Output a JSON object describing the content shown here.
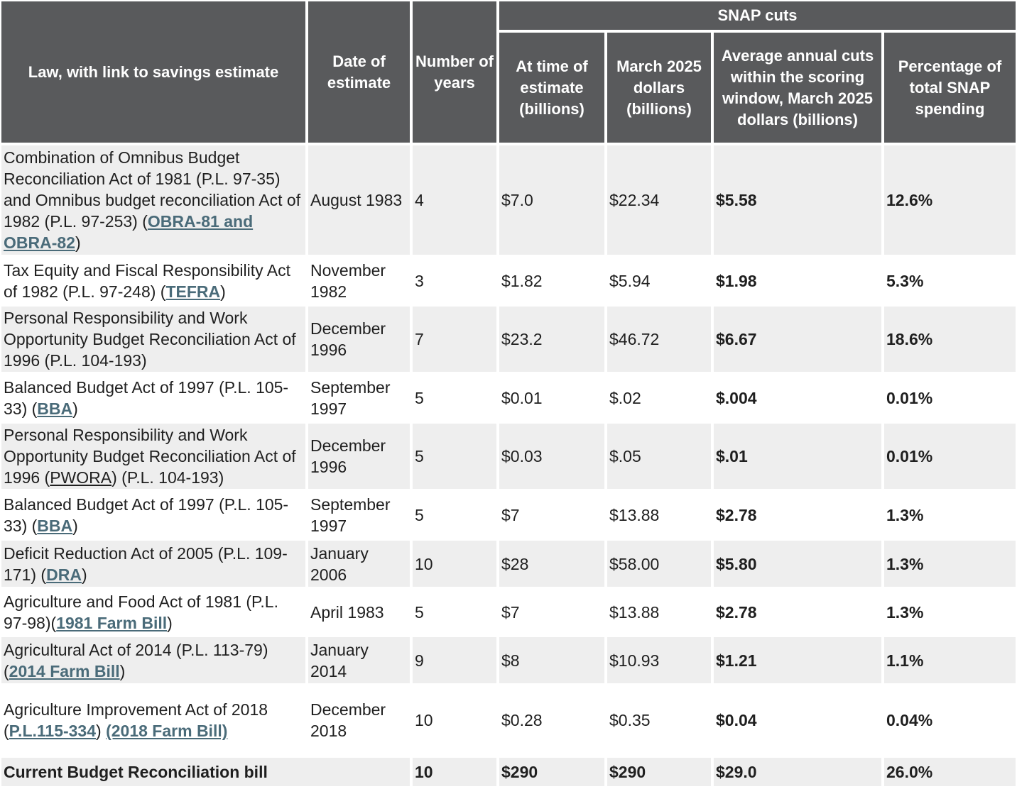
{
  "header": {
    "law": "Law, with link to savings estimate",
    "date": "Date of estimate",
    "years": "Number of years",
    "group": "SNAP cuts",
    "at_time": "At time of estimate (billions)",
    "march": "March 2025 dollars (billions)",
    "average": "Average annual cuts within the scoring window, March 2025 dollars (billions)",
    "percent": "Percentage of total SNAP spending"
  },
  "rows": [
    {
      "law_text": "Combination of Omnibus Budget Reconciliation Act of 1981 (P.L. 97-35) and Omnibus budget reconciliation Act of 1982 (P.L. 97-253) (",
      "link": "OBRA-81 and OBRA-82",
      "after": ")",
      "date": "August 1983",
      "years": "4",
      "at_time": "$7.0",
      "march": "$22.34",
      "average": "$5.58",
      "percent": "12.6%"
    },
    {
      "law_text": "Tax Equity and Fiscal Responsibility Act of 1982 (P.L. 97-248) (",
      "link": "TEFRA",
      "after": ")",
      "date": "November 1982",
      "years": "3",
      "at_time": "$1.82",
      "march": "$5.94",
      "average": "$1.98",
      "percent": "5.3%"
    },
    {
      "law_text": "Personal Responsibility and Work Opportunity Budget Reconciliation Act of 1996 (P.L. 104-193)",
      "date": "December 1996",
      "years": "7",
      "at_time": "$23.2",
      "march": "$46.72",
      "average": "$6.67",
      "percent": "18.6%"
    },
    {
      "law_text": "Balanced Budget Act of 1997 (P.L. 105-33) (",
      "link": "BBA",
      "after": ")",
      "date": "September 1997",
      "years": "5",
      "at_time": "$0.01",
      "march": "$.02",
      "average": "$.004",
      "percent": "0.01%"
    },
    {
      "law_text": "Personal Responsibility and Work Opportunity Budget Reconciliation Act of 1996 (",
      "plain_link": "PWORA",
      "after": ") (P.L. 104-193)",
      "date": "December 1996",
      "years": "5",
      "at_time": "$0.03",
      "march": "$.05",
      "average": "$.01",
      "percent": "0.01%"
    },
    {
      "law_text": "Balanced Budget Act of 1997 (P.L. 105-33) (",
      "link": "BBA",
      "after": ")",
      "date": "September 1997",
      "years": "5",
      "at_time": "$7",
      "march": "$13.88",
      "average": "$2.78",
      "percent": "1.3%"
    },
    {
      "law_text": "Deficit Reduction Act of 2005 (P.L. 109-171) (",
      "link": "DRA",
      "after": ")",
      "date": "January 2006",
      "years": "10",
      "at_time": "$28",
      "march": "$58.00",
      "average": "$5.80",
      "percent": "1.3%"
    },
    {
      "law_text": "Agriculture and Food Act of 1981 (P.L. 97-98)(",
      "link": "1981 Farm Bill",
      "after": ")",
      "date": "April 1983",
      "years": "5",
      "at_time": "$7",
      "march": "$13.88",
      "average": "$2.78",
      "percent": "1.3%"
    },
    {
      "law_text": "Agricultural Act of 2014 (P.L. 113-79) (",
      "link": "2014 Farm Bill",
      "after": ")",
      "date": "January 2014",
      "years": "9",
      "at_time": "$8",
      "march": "$10.93",
      "average": "$1.21",
      "percent": "1.1%"
    },
    {
      "law_text": "Agriculture Improvement Act of 2018 (",
      "link": "P.L.115-334",
      "after": ") ",
      "link2": "(2018 Farm Bill)",
      "date": "December 2018",
      "years": "10",
      "at_time": "$0.28",
      "march": "$0.35",
      "average": "$0.04",
      "percent": "0.04%"
    }
  ],
  "total": {
    "law_text": "Current Budget Reconciliation bill",
    "date": "",
    "years": "10",
    "at_time": "$290",
    "march": "$290",
    "average": "$29.0",
    "percent": "26.0%"
  }
}
